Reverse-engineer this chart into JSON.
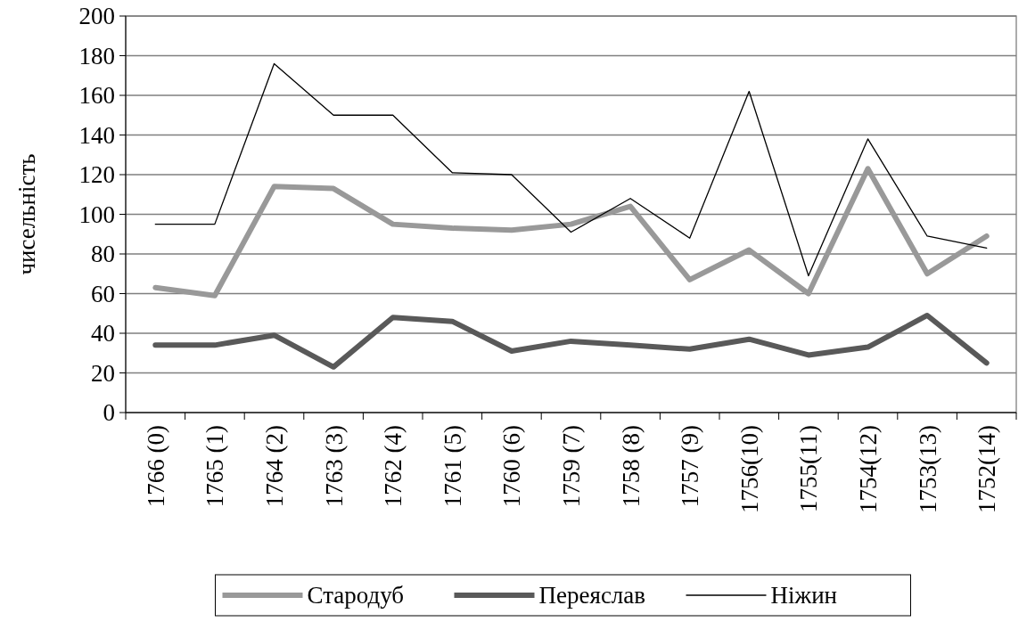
{
  "chart_data": {
    "type": "line",
    "ylabel": "чисельність",
    "categories": [
      "1766 (0)",
      "1765 (1)",
      "1764 (2)",
      "1763 (3)",
      "1762 (4)",
      "1761 (5)",
      "1760 (6)",
      "1759 (7)",
      "1758 (8)",
      "1757 (9)",
      "1756(10)",
      "1755(11)",
      "1754(12)",
      "1753(13)",
      "1752(14)"
    ],
    "series": [
      {
        "name": "Стародуб",
        "color": "#999999",
        "values": [
          63,
          59,
          114,
          113,
          95,
          93,
          92,
          95,
          104,
          67,
          82,
          60,
          123,
          70,
          89
        ]
      },
      {
        "name": "Переяслав",
        "color": "#595959",
        "values": [
          34,
          34,
          39,
          23,
          48,
          46,
          31,
          36,
          34,
          32,
          37,
          29,
          33,
          49,
          25
        ]
      },
      {
        "name": "Ніжин",
        "color": "#000000",
        "values": [
          95,
          95,
          176,
          150,
          150,
          121,
          120,
          91,
          108,
          88,
          162,
          69,
          138,
          89,
          83
        ]
      }
    ],
    "ylim": [
      0,
      200
    ],
    "yticks": [
      0,
      20,
      40,
      60,
      80,
      100,
      120,
      140,
      160,
      180,
      200
    ],
    "grid": "y",
    "legend": "bottom"
  }
}
